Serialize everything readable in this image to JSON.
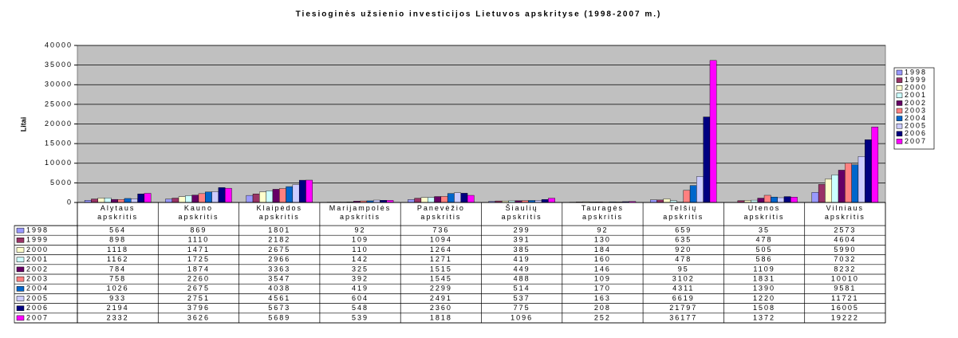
{
  "chart_data": {
    "type": "bar",
    "title": "Tiesioginės užsienio investicijos Lietuvos apskrityse (1998-2007 m.)",
    "y_label": "Litai",
    "categories": [
      "Alytaus apskritis",
      "Kauno apskritis",
      "Klaipėdos apskritis",
      "Marijampolės apskritis",
      "Panevėžio apskritis",
      "Šiaulių apskritis",
      "Tauragės apskritis",
      "Telšių apskritis",
      "Utenos apskritis",
      "Vilniaus apskritis"
    ],
    "series": [
      {
        "name": "1998",
        "color": "#9999ff",
        "values": [
          564,
          869,
          1801,
          92,
          736,
          299,
          92,
          659,
          35,
          2573
        ]
      },
      {
        "name": "1999",
        "color": "#993366",
        "values": [
          898,
          1110,
          2182,
          109,
          1094,
          391,
          130,
          635,
          478,
          4604
        ]
      },
      {
        "name": "2000",
        "color": "#ffffcc",
        "values": [
          1118,
          1471,
          2675,
          110,
          1264,
          385,
          184,
          920,
          505,
          5990
        ]
      },
      {
        "name": "2001",
        "color": "#ccffff",
        "values": [
          1162,
          1725,
          2966,
          142,
          1271,
          419,
          160,
          478,
          586,
          7032
        ]
      },
      {
        "name": "2002",
        "color": "#660066",
        "values": [
          784,
          1874,
          3363,
          325,
          1515,
          449,
          146,
          95,
          1109,
          8232
        ]
      },
      {
        "name": "2003",
        "color": "#ff8080",
        "values": [
          758,
          2260,
          3547,
          392,
          1545,
          488,
          109,
          3102,
          1831,
          10010
        ]
      },
      {
        "name": "2004",
        "color": "#0066cc",
        "values": [
          1026,
          2675,
          4038,
          419,
          2299,
          514,
          170,
          4311,
          1390,
          9581
        ]
      },
      {
        "name": "2005",
        "color": "#ccccff",
        "values": [
          933,
          2751,
          4561,
          604,
          2491,
          537,
          163,
          6619,
          1220,
          11721
        ]
      },
      {
        "name": "2006",
        "color": "#000080",
        "values": [
          2194,
          3796,
          5673,
          548,
          2360,
          775,
          208,
          21797,
          1508,
          16005
        ]
      },
      {
        "name": "2007",
        "color": "#ff00ff",
        "values": [
          2332,
          3626,
          5689,
          539,
          1818,
          1096,
          252,
          36177,
          1372,
          19222
        ]
      }
    ],
    "ylim": [
      0,
      40000
    ],
    "yticks": [
      0,
      5000,
      10000,
      15000,
      20000,
      25000,
      30000,
      35000,
      40000
    ],
    "grid": true,
    "legend": "right"
  }
}
